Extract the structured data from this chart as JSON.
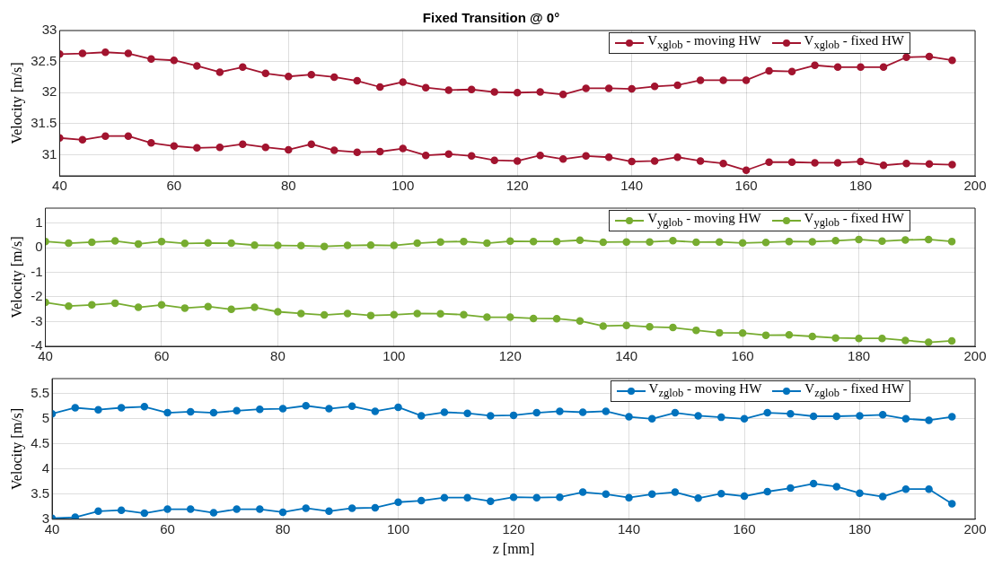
{
  "chart_data": [
    {
      "type": "line",
      "title": "Fixed Transition @ 0°",
      "ylabel": "Velocity [m/s]",
      "x": [
        40,
        44,
        48,
        52,
        56,
        60,
        64,
        68,
        72,
        76,
        80,
        84,
        88,
        92,
        96,
        100,
        104,
        108,
        112,
        116,
        120,
        124,
        128,
        132,
        136,
        140,
        144,
        148,
        152,
        156,
        160,
        164,
        168,
        172,
        176,
        180,
        184,
        188,
        192,
        196
      ],
      "xlim": [
        40,
        200
      ],
      "xticks": [
        40,
        60,
        80,
        100,
        120,
        140,
        160,
        180,
        200
      ],
      "ylim": [
        30.66,
        33
      ],
      "yticks": [
        31,
        31.5,
        32,
        32.5,
        33
      ],
      "grid": true,
      "legend": "top right",
      "marker": "circle",
      "line_style": "solid",
      "series": [
        {
          "name": "V$_{xglob}$ - moving HW",
          "color": "#a2142f",
          "values": [
            32.62,
            32.63,
            32.65,
            32.63,
            32.54,
            32.52,
            32.43,
            32.33,
            32.41,
            32.31,
            32.26,
            32.29,
            32.25,
            32.19,
            32.09,
            32.17,
            32.08,
            32.04,
            32.05,
            32.01,
            32.0,
            32.01,
            31.97,
            32.07,
            32.07,
            32.06,
            32.1,
            32.12,
            32.2,
            32.2,
            32.2,
            32.35,
            32.34,
            32.44,
            32.41,
            32.41,
            32.41,
            32.57,
            32.58,
            32.52
          ]
        },
        {
          "name": "V$_{xglob}$ - fixed HW",
          "color": "#a2142f",
          "values": [
            31.27,
            31.24,
            31.3,
            31.3,
            31.19,
            31.14,
            31.11,
            31.12,
            31.17,
            31.12,
            31.08,
            31.17,
            31.07,
            31.04,
            31.05,
            31.1,
            30.99,
            31.01,
            30.98,
            30.91,
            30.9,
            30.99,
            30.93,
            30.98,
            30.96,
            30.89,
            30.9,
            30.96,
            30.9,
            30.86,
            30.75,
            30.88,
            30.88,
            30.87,
            30.87,
            30.89,
            30.83,
            30.86,
            30.85,
            30.84
          ]
        }
      ]
    },
    {
      "type": "line",
      "ylabel": "Velocity [m/s]",
      "x": [
        40,
        44,
        48,
        52,
        56,
        60,
        64,
        68,
        72,
        76,
        80,
        84,
        88,
        92,
        96,
        100,
        104,
        108,
        112,
        116,
        120,
        124,
        128,
        132,
        136,
        140,
        144,
        148,
        152,
        156,
        160,
        164,
        168,
        172,
        176,
        180,
        184,
        188,
        192,
        196
      ],
      "xlim": [
        40,
        200
      ],
      "xticks": [
        40,
        60,
        80,
        100,
        120,
        140,
        160,
        180,
        200
      ],
      "ylim": [
        -4,
        1.6
      ],
      "yticks": [
        -4,
        -3,
        -2,
        -1,
        0,
        1
      ],
      "grid": true,
      "legend": "top right",
      "marker": "circle",
      "line_style": "solid",
      "series": [
        {
          "name": "V$_{yglob}$ - moving HW",
          "color": "#77ac30",
          "values": [
            -2.22,
            -2.37,
            -2.32,
            -2.25,
            -2.42,
            -2.32,
            -2.45,
            -2.39,
            -2.5,
            -2.42,
            -2.6,
            -2.67,
            -2.73,
            -2.67,
            -2.75,
            -2.72,
            -2.67,
            -2.68,
            -2.72,
            -2.82,
            -2.82,
            -2.87,
            -2.88,
            -2.97,
            -3.18,
            -3.15,
            -3.21,
            -3.24,
            -3.35,
            -3.45,
            -3.46,
            -3.55,
            -3.54,
            -3.6,
            -3.66,
            -3.68,
            -3.68,
            -3.76,
            -3.84,
            -3.78
          ]
        },
        {
          "name": "V$_{yglob}$ - fixed HW",
          "color": "#77ac30",
          "values": [
            0.25,
            0.18,
            0.22,
            0.27,
            0.15,
            0.25,
            0.17,
            0.19,
            0.18,
            0.1,
            0.09,
            0.08,
            0.05,
            0.09,
            0.1,
            0.09,
            0.18,
            0.23,
            0.25,
            0.18,
            0.26,
            0.25,
            0.25,
            0.3,
            0.22,
            0.23,
            0.23,
            0.28,
            0.22,
            0.23,
            0.19,
            0.21,
            0.25,
            0.24,
            0.28,
            0.33,
            0.26,
            0.31,
            0.33,
            0.25
          ]
        }
      ]
    },
    {
      "type": "line",
      "xlabel": "z [mm]",
      "ylabel": "Velocity [m/s]",
      "x": [
        40,
        44,
        48,
        52,
        56,
        60,
        64,
        68,
        72,
        76,
        80,
        84,
        88,
        92,
        96,
        100,
        104,
        108,
        112,
        116,
        120,
        124,
        128,
        132,
        136,
        140,
        144,
        148,
        152,
        156,
        160,
        164,
        168,
        172,
        176,
        180,
        184,
        188,
        192,
        196
      ],
      "xlim": [
        40,
        200
      ],
      "xticks": [
        40,
        60,
        80,
        100,
        120,
        140,
        160,
        180,
        200
      ],
      "ylim": [
        3,
        5.8
      ],
      "yticks": [
        3,
        3.5,
        4,
        4.5,
        5,
        5.5
      ],
      "grid": true,
      "legend": "top right",
      "marker": "circle",
      "line_style": "solid",
      "series": [
        {
          "name": "V$_{zglob}$ - moving HW",
          "color": "#0072bd",
          "values": [
            3.02,
            3.04,
            3.16,
            3.18,
            3.12,
            3.2,
            3.2,
            3.13,
            3.2,
            3.2,
            3.14,
            3.22,
            3.16,
            3.22,
            3.23,
            3.34,
            3.37,
            3.43,
            3.43,
            3.36,
            3.44,
            3.43,
            3.44,
            3.54,
            3.5,
            3.43,
            3.5,
            3.54,
            3.42,
            3.51,
            3.46,
            3.55,
            3.62,
            3.71,
            3.65,
            3.52,
            3.45,
            3.6,
            3.6,
            3.31
          ]
        },
        {
          "name": "V$_{zglob}$ - fixed HW",
          "color": "#0072bd",
          "values": [
            5.1,
            5.22,
            5.18,
            5.22,
            5.24,
            5.12,
            5.14,
            5.12,
            5.16,
            5.19,
            5.2,
            5.26,
            5.2,
            5.25,
            5.15,
            5.23,
            5.06,
            5.13,
            5.11,
            5.06,
            5.07,
            5.12,
            5.15,
            5.13,
            5.15,
            5.04,
            5.0,
            5.12,
            5.06,
            5.03,
            5.0,
            5.12,
            5.1,
            5.05,
            5.05,
            5.06,
            5.08,
            5.0,
            4.97,
            5.04
          ]
        }
      ]
    }
  ]
}
